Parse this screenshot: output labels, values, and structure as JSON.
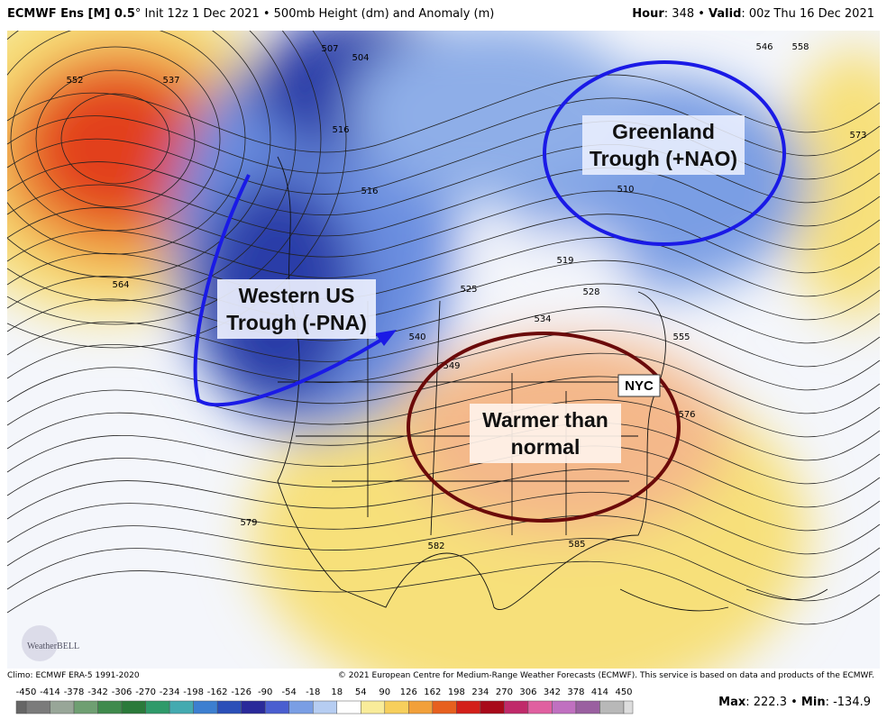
{
  "header": {
    "model": "ECMWF Ens [M] 0.5",
    "degree": "°",
    "description": "Init 12z 1 Dec 2021 • 500mb Height (dm) and Anomaly (m)",
    "hour_label": "Hour",
    "hour": ": 348 • ",
    "valid_label": "Valid",
    "valid": ": 00z Thu 16 Dec 2021"
  },
  "annotations": {
    "greenland": [
      "Greenland",
      "Trough (+NAO)"
    ],
    "western": [
      "Western US",
      "Trough (-PNA)"
    ],
    "warm": [
      "Warmer than",
      "normal"
    ],
    "nyc": "NYC"
  },
  "contour_labels": [
    552,
    537,
    507,
    504,
    516,
    516,
    510,
    519,
    525,
    528,
    534,
    540,
    549,
    555,
    576,
    579,
    582,
    585,
    564,
    546,
    558,
    573
  ],
  "logo": "WeatherBELL",
  "footer": {
    "climo": "Climo: ECMWF ERA-5 1991-2020",
    "copyright": "© 2021 European Centre for Medium-Range Weather Forecasts (ECMWF). This service is based on data and products of the ECMWF."
  },
  "colorbar": {
    "ticks": [
      -450,
      -414,
      -378,
      -342,
      -306,
      -270,
      -234,
      -198,
      -162,
      -126,
      -90,
      -54,
      -18,
      18,
      54,
      90,
      126,
      162,
      198,
      234,
      270,
      306,
      342,
      378,
      414,
      450
    ]
  },
  "stats": {
    "max_label": "Max",
    "max": ": 222.3 • ",
    "min_label": "Min",
    "min": ": -134.9"
  }
}
